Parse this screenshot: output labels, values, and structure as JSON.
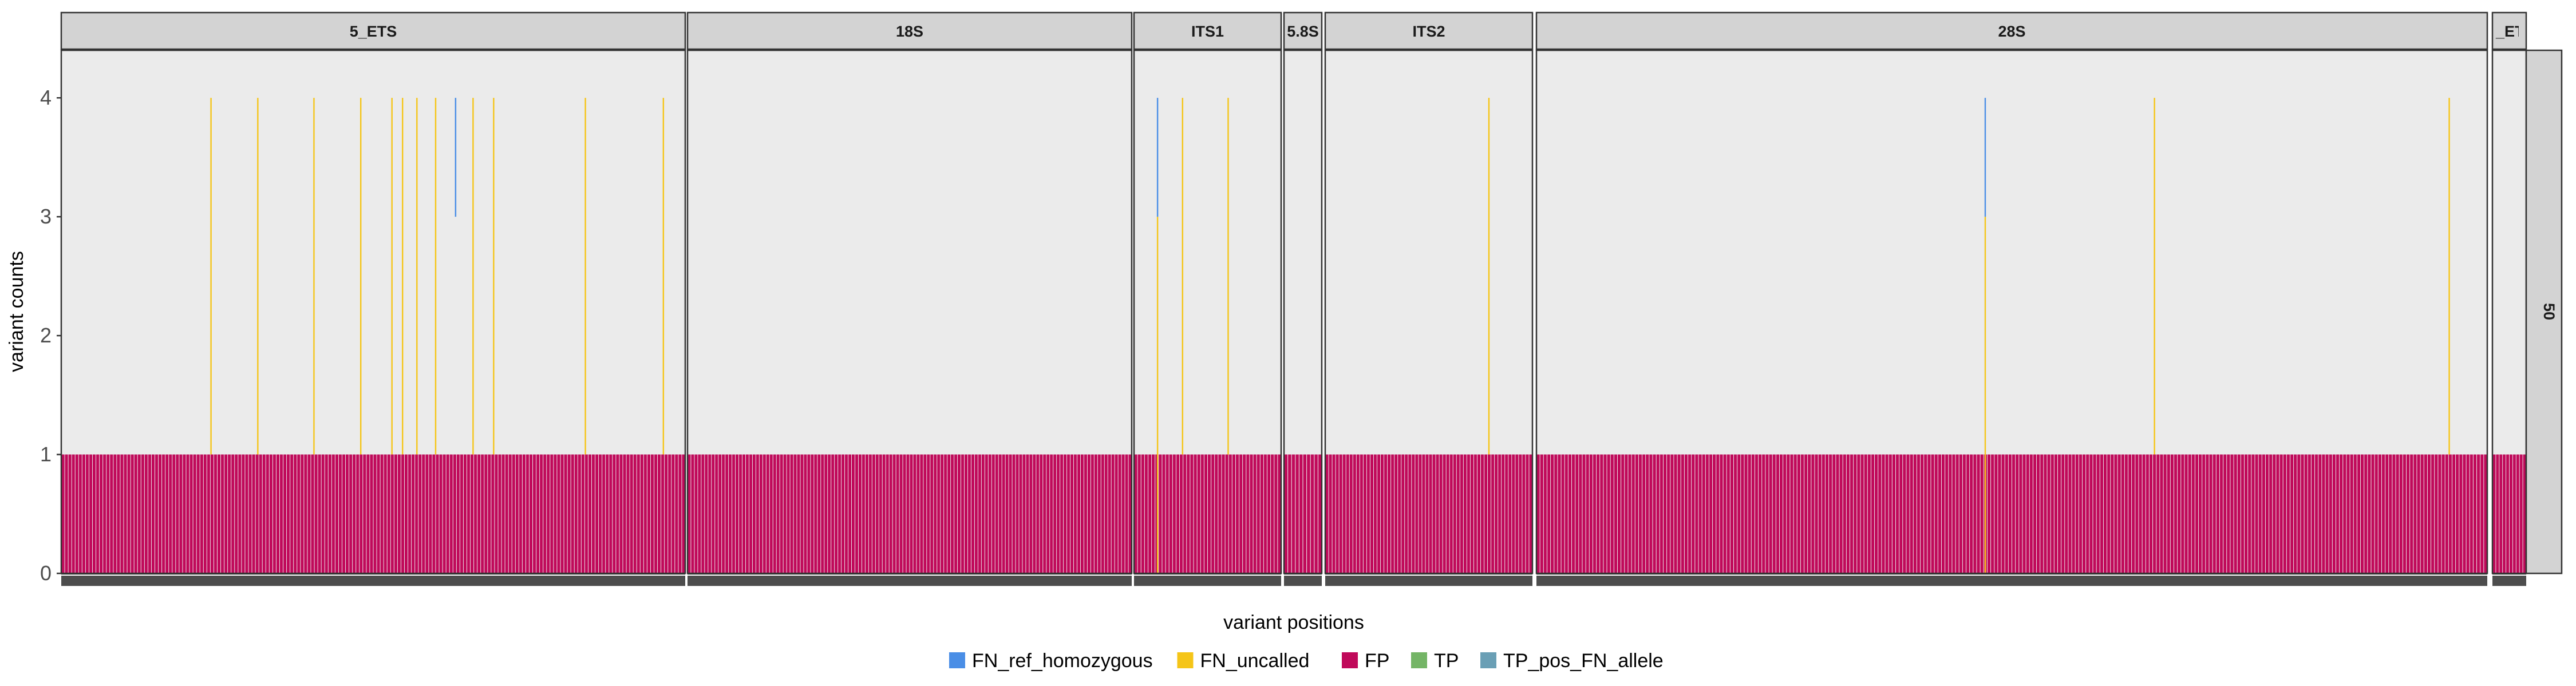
{
  "chart_data": {
    "type": "bar",
    "xlabel": "variant positions",
    "ylabel": "variant counts",
    "ylim": [
      0,
      4.4
    ],
    "y_ticks": [
      "0",
      "1",
      "2",
      "3",
      "4"
    ],
    "grid": false,
    "legend_position": "bottom",
    "row_strip_label": "50",
    "legend": [
      {
        "name": "FN_ref_homozygous",
        "color": "#4a8ee6"
      },
      {
        "name": "FN_uncalled",
        "color": "#f5c518"
      },
      {
        "name": "FP",
        "color": "#c0095a"
      },
      {
        "name": "TP",
        "color": "#74b566"
      },
      {
        "name": "TP_pos_FN_allele",
        "color": "#6a9fb5"
      }
    ],
    "regions": [
      {
        "name": "5_ETS",
        "n_positions": 180,
        "fp_count": 1,
        "fn_uncalled": [
          [
            0.24,
            1,
            4
          ],
          [
            0.315,
            1,
            4
          ],
          [
            0.405,
            1,
            4
          ],
          [
            0.48,
            1,
            4
          ],
          [
            0.53,
            1,
            4
          ],
          [
            0.547,
            1,
            4
          ],
          [
            0.57,
            1,
            4
          ],
          [
            0.6,
            1,
            4
          ],
          [
            0.66,
            1,
            4
          ],
          [
            0.693,
            1,
            4
          ],
          [
            0.84,
            1,
            4
          ],
          [
            0.965,
            1,
            4
          ]
        ],
        "fn_ref_homozygous": [
          [
            0.632,
            3,
            4
          ]
        ]
      },
      {
        "name": "18S",
        "n_positions": 130,
        "fp_count": 1,
        "fn_uncalled": [],
        "fn_ref_homozygous": []
      },
      {
        "name": "ITS1",
        "n_positions": 42,
        "fp_count": 1,
        "fn_uncalled": [
          [
            0.16,
            0,
            3
          ],
          [
            0.33,
            1,
            4
          ],
          [
            0.64,
            1,
            4
          ]
        ],
        "fn_ref_homozygous": [
          [
            0.16,
            3,
            4
          ]
        ]
      },
      {
        "name": "5.8S",
        "n_positions": 10,
        "fp_count": 1,
        "fn_uncalled": [],
        "fn_ref_homozygous": []
      },
      {
        "name": "ITS2",
        "n_positions": 60,
        "fp_count": 1,
        "fn_uncalled": [
          [
            0.79,
            1,
            4
          ]
        ],
        "fn_ref_homozygous": []
      },
      {
        "name": "28S",
        "n_positions": 270,
        "fp_count": 1,
        "fn_uncalled": [
          [
            0.472,
            0,
            3
          ],
          [
            0.65,
            1,
            4
          ],
          [
            0.96,
            1,
            4
          ]
        ],
        "fn_ref_homozygous": [
          [
            0.472,
            3,
            4
          ]
        ]
      },
      {
        "name": "_ETS",
        "n_positions": 10,
        "fp_count": 1,
        "fn_uncalled": [],
        "fn_ref_homozygous": []
      }
    ]
  }
}
